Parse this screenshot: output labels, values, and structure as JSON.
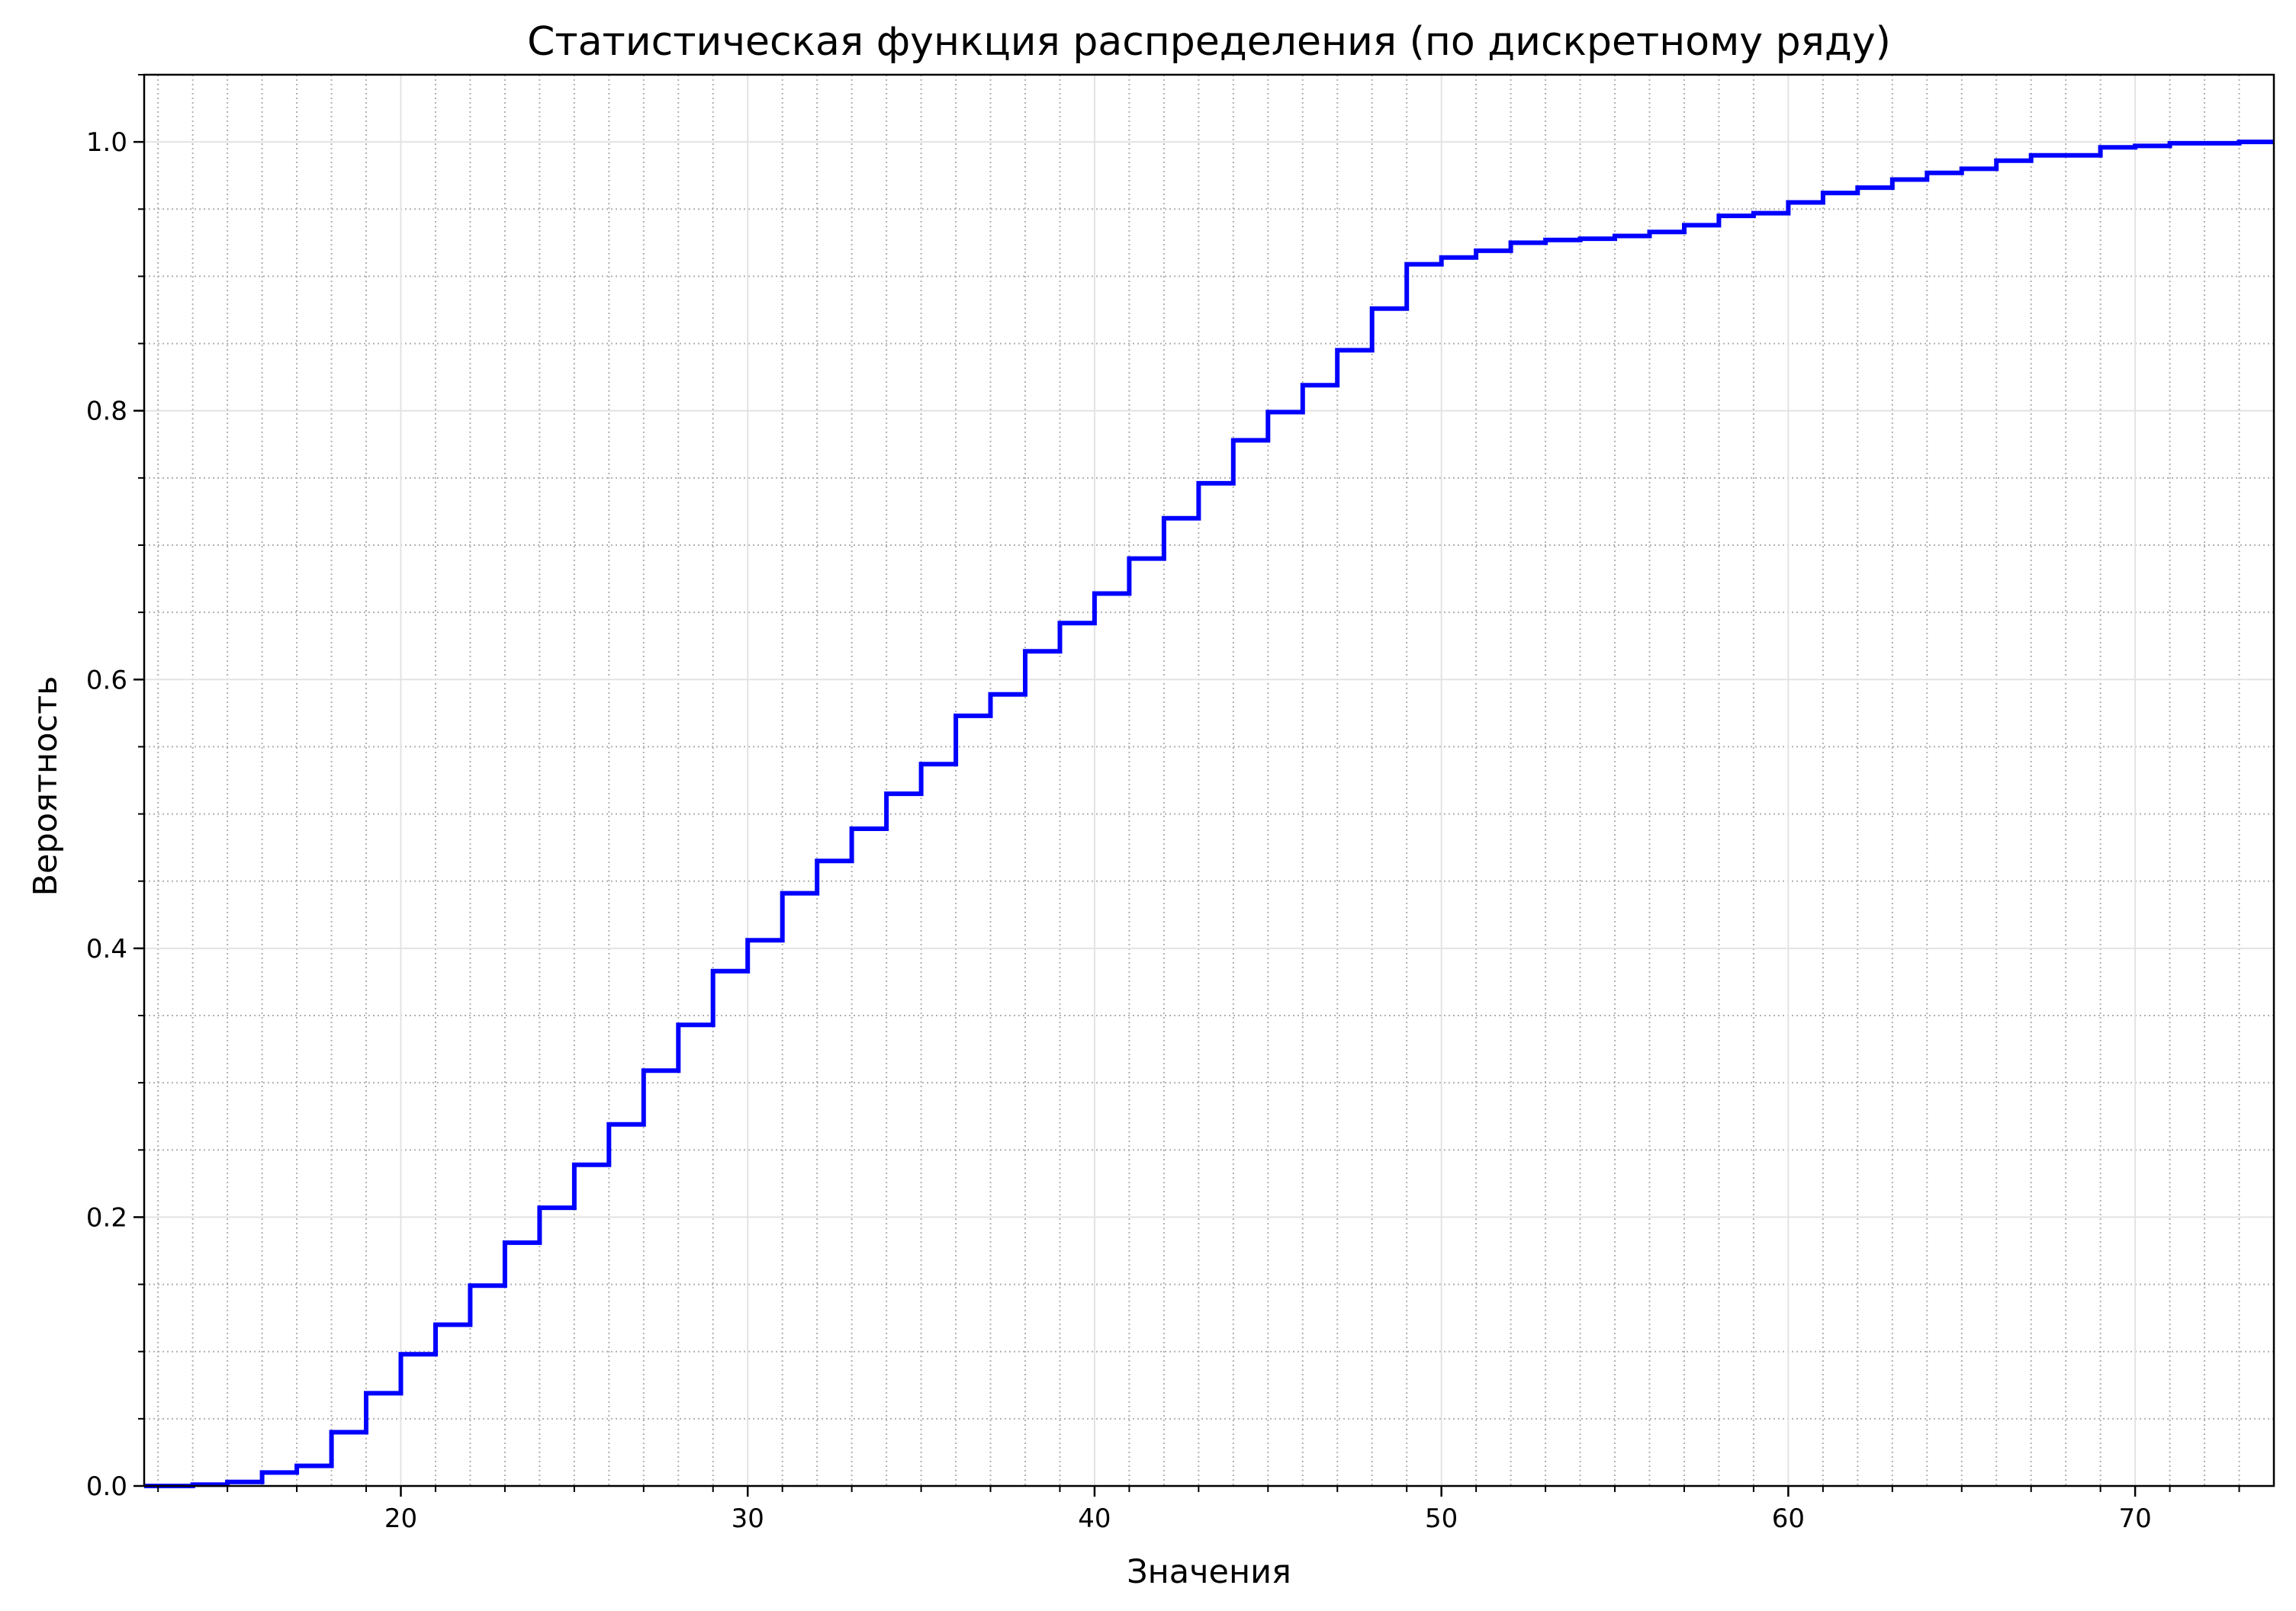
{
  "chart_data": {
    "type": "line",
    "step": "post",
    "title": "Статистическая функция распределения (по дискретному ряду)",
    "xlabel": "Значения",
    "ylabel": "Вероятность",
    "xlim": [
      12.6,
      74
    ],
    "ylim": [
      0,
      1.05
    ],
    "xticks": [
      20,
      30,
      40,
      50,
      60,
      70
    ],
    "xtick_labels": [
      "20",
      "30",
      "40",
      "50",
      "60",
      "70"
    ],
    "yticks": [
      0,
      0.2,
      0.4,
      0.6,
      0.8,
      1.0
    ],
    "ytick_labels": [
      "0.0",
      "0.2",
      "0.4",
      "0.6",
      "0.8",
      "1.0"
    ],
    "x_minor_step": 1,
    "y_minor_step": 0.05,
    "grid": true,
    "line_color": "#0000ff",
    "series": [
      {
        "x": [
          12.6,
          13,
          14,
          15,
          16,
          17,
          18,
          19,
          20,
          21,
          22,
          23,
          24,
          25,
          26,
          27,
          28,
          29,
          30,
          31,
          32,
          33,
          34,
          35,
          36,
          37,
          38,
          39,
          40,
          41,
          42,
          43,
          44,
          45,
          46,
          47,
          48,
          49,
          50,
          51,
          52,
          53,
          54,
          55,
          56,
          57,
          58,
          59,
          60,
          61,
          62,
          63,
          64,
          65,
          66,
          67,
          68,
          69,
          70,
          71,
          72,
          73,
          74
        ],
        "y": [
          0.0,
          0.0,
          0.001,
          0.003,
          0.01,
          0.015,
          0.04,
          0.069,
          0.098,
          0.12,
          0.149,
          0.181,
          0.207,
          0.239,
          0.269,
          0.309,
          0.343,
          0.383,
          0.406,
          0.441,
          0.465,
          0.489,
          0.515,
          0.537,
          0.573,
          0.589,
          0.621,
          0.642,
          0.664,
          0.69,
          0.72,
          0.746,
          0.778,
          0.799,
          0.819,
          0.845,
          0.876,
          0.909,
          0.914,
          0.919,
          0.925,
          0.927,
          0.928,
          0.93,
          0.933,
          0.938,
          0.945,
          0.947,
          0.955,
          0.962,
          0.966,
          0.972,
          0.977,
          0.98,
          0.986,
          0.99,
          0.99,
          0.996,
          0.997,
          0.999,
          0.999,
          1.0,
          1.0
        ]
      }
    ]
  }
}
